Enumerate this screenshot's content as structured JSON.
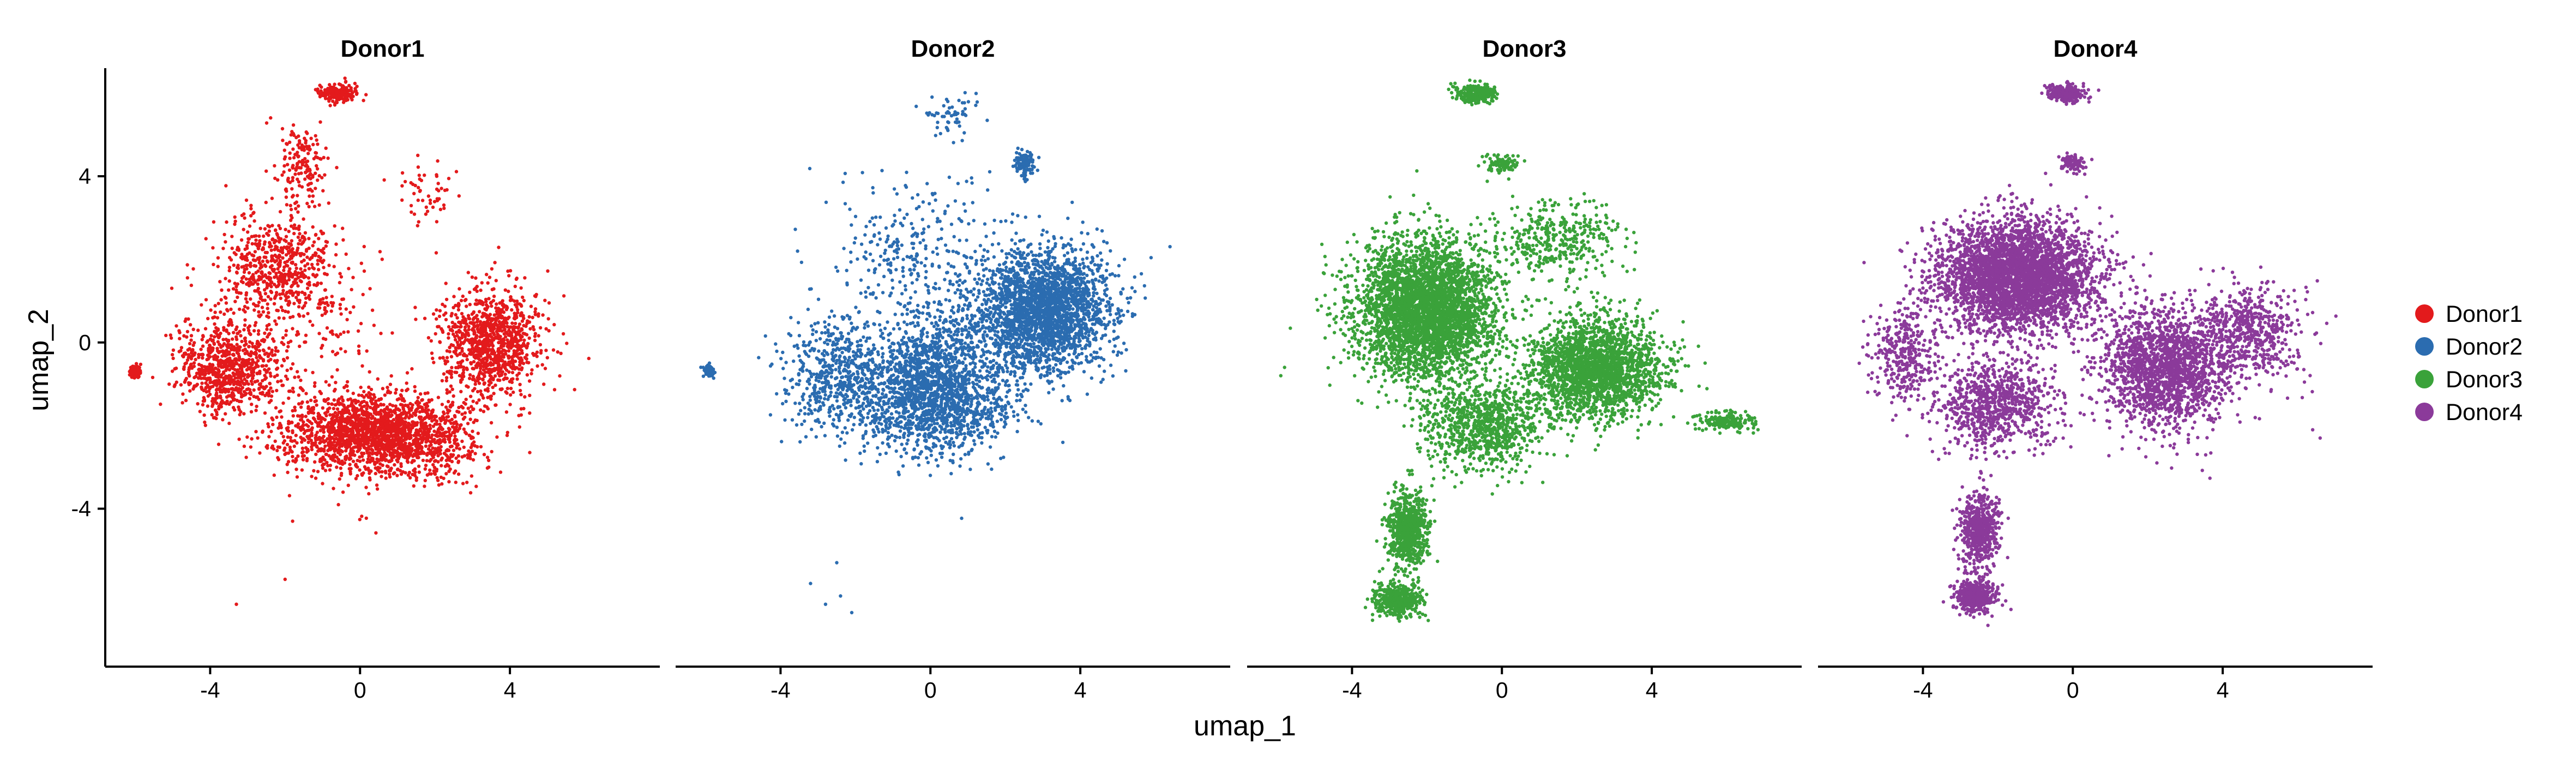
{
  "chart_data": {
    "type": "scatter",
    "xlabel": "umap_1",
    "ylabel": "umap_2",
    "xlim": [
      -6.8,
      8.0
    ],
    "ylim": [
      -7.8,
      6.6
    ],
    "x_ticks": [
      -4,
      0,
      4
    ],
    "y_ticks": [
      -4,
      0,
      4
    ],
    "x_tick_labels": [
      "-4",
      "0",
      "4"
    ],
    "y_tick_labels": [
      "-4",
      "0",
      "4"
    ],
    "grid": false,
    "legend_position": "right",
    "legend": [
      {
        "label": "Donor1",
        "color": "#e31a1c"
      },
      {
        "label": "Donor2",
        "color": "#2b6cb0"
      },
      {
        "label": "Donor3",
        "color": "#3aa23a"
      },
      {
        "label": "Donor4",
        "color": "#8b3a9a"
      }
    ],
    "panels": [
      {
        "title": "Donor1",
        "color": "#e31a1c",
        "n_points": 5200,
        "point_clouds": [
          {
            "cx": 0.5,
            "cy": -2.2,
            "sx": 2.2,
            "sy": 0.9,
            "weight": 0.4
          },
          {
            "cx": 3.5,
            "cy": 0.0,
            "sx": 1.2,
            "sy": 1.1,
            "weight": 0.2
          },
          {
            "cx": -3.5,
            "cy": -0.6,
            "sx": 1.2,
            "sy": 1.0,
            "weight": 0.15
          },
          {
            "cx": -2.2,
            "cy": 1.8,
            "sx": 1.4,
            "sy": 1.2,
            "weight": 0.11
          },
          {
            "cx": -0.6,
            "cy": 6.0,
            "sx": 0.45,
            "sy": 0.18,
            "weight": 0.04
          },
          {
            "cx": -1.6,
            "cy": 4.2,
            "sx": 0.6,
            "sy": 0.9,
            "weight": 0.03
          },
          {
            "cx": -6.0,
            "cy": -0.7,
            "sx": 0.15,
            "sy": 0.15,
            "weight": 0.02
          },
          {
            "cx": 1.8,
            "cy": 3.6,
            "sx": 0.7,
            "sy": 0.6,
            "weight": 0.01
          },
          {
            "cx": -1.5,
            "cy": 0.5,
            "sx": 2.5,
            "sy": 2.5,
            "weight": 0.04
          }
        ],
        "outliers": [
          [
            -3.3,
            -6.3
          ],
          [
            -2.0,
            -5.7
          ],
          [
            -1.8,
            -4.3
          ]
        ]
      },
      {
        "title": "Donor2",
        "color": "#2b6cb0",
        "n_points": 5600,
        "point_clouds": [
          {
            "cx": 3.0,
            "cy": 0.8,
            "sx": 1.6,
            "sy": 1.3,
            "weight": 0.42
          },
          {
            "cx": 0.0,
            "cy": -1.2,
            "sx": 1.7,
            "sy": 1.3,
            "weight": 0.3
          },
          {
            "cx": -2.5,
            "cy": -0.8,
            "sx": 1.2,
            "sy": 1.2,
            "weight": 0.1
          },
          {
            "cx": 2.5,
            "cy": 4.3,
            "sx": 0.25,
            "sy": 0.3,
            "weight": 0.02
          },
          {
            "cx": -0.5,
            "cy": 2.5,
            "sx": 2.0,
            "sy": 1.5,
            "weight": 0.04
          },
          {
            "cx": -5.9,
            "cy": -0.7,
            "sx": 0.15,
            "sy": 0.12,
            "weight": 0.01
          },
          {
            "cx": 0.5,
            "cy": 5.5,
            "sx": 0.6,
            "sy": 0.5,
            "weight": 0.01
          },
          {
            "cx": 1.0,
            "cy": 0.0,
            "sx": 2.5,
            "sy": 2.0,
            "weight": 0.1
          }
        ],
        "outliers": [
          [
            -2.8,
            -6.3
          ],
          [
            -3.2,
            -5.8
          ],
          [
            -2.4,
            -6.1
          ],
          [
            -2.1,
            -6.5
          ],
          [
            -2.5,
            -5.3
          ]
        ]
      },
      {
        "title": "Donor3",
        "color": "#3aa23a",
        "n_points": 9000,
        "point_clouds": [
          {
            "cx": -2.0,
            "cy": 0.8,
            "sx": 1.7,
            "sy": 1.5,
            "weight": 0.42
          },
          {
            "cx": 2.5,
            "cy": -0.6,
            "sx": 1.6,
            "sy": 1.1,
            "weight": 0.25
          },
          {
            "cx": -2.5,
            "cy": -4.5,
            "sx": 0.5,
            "sy": 0.8,
            "weight": 0.08
          },
          {
            "cx": -2.8,
            "cy": -6.2,
            "sx": 0.55,
            "sy": 0.35,
            "weight": 0.05
          },
          {
            "cx": -0.7,
            "cy": 6.0,
            "sx": 0.5,
            "sy": 0.2,
            "weight": 0.03
          },
          {
            "cx": 6.0,
            "cy": -1.9,
            "sx": 0.7,
            "sy": 0.2,
            "weight": 0.02
          },
          {
            "cx": 0.0,
            "cy": 4.3,
            "sx": 0.4,
            "sy": 0.2,
            "weight": 0.01
          },
          {
            "cx": 1.5,
            "cy": 2.5,
            "sx": 1.5,
            "sy": 0.8,
            "weight": 0.04
          },
          {
            "cx": -0.5,
            "cy": -2.0,
            "sx": 1.5,
            "sy": 1.0,
            "weight": 0.1
          }
        ],
        "outliers": [
          [
            -5.9,
            -0.8
          ],
          [
            -5.8,
            -0.6
          ]
        ]
      },
      {
        "title": "Donor4",
        "color": "#8b3a9a",
        "n_points": 8500,
        "point_clouds": [
          {
            "cx": -1.5,
            "cy": 1.6,
            "sx": 1.9,
            "sy": 1.2,
            "weight": 0.42
          },
          {
            "cx": 2.5,
            "cy": -0.6,
            "sx": 1.6,
            "sy": 1.3,
            "weight": 0.22
          },
          {
            "cx": -2.0,
            "cy": -1.5,
            "sx": 1.4,
            "sy": 1.0,
            "weight": 0.1
          },
          {
            "cx": -2.5,
            "cy": -4.5,
            "sx": 0.45,
            "sy": 0.8,
            "weight": 0.07
          },
          {
            "cx": -2.6,
            "cy": -6.1,
            "sx": 0.5,
            "sy": 0.35,
            "weight": 0.05
          },
          {
            "cx": -0.2,
            "cy": 6.0,
            "sx": 0.45,
            "sy": 0.18,
            "weight": 0.03
          },
          {
            "cx": 0.0,
            "cy": 4.3,
            "sx": 0.3,
            "sy": 0.2,
            "weight": 0.01
          },
          {
            "cx": -4.5,
            "cy": -0.3,
            "sx": 0.8,
            "sy": 1.0,
            "weight": 0.04
          },
          {
            "cx": 4.8,
            "cy": 0.3,
            "sx": 1.2,
            "sy": 1.0,
            "weight": 0.06
          }
        ],
        "outliers": [
          [
            -5.7,
            -0.5
          ],
          [
            -5.5,
            -0.3
          ],
          [
            6.4,
            -2.1
          ],
          [
            6.6,
            -2.3
          ]
        ]
      }
    ]
  }
}
